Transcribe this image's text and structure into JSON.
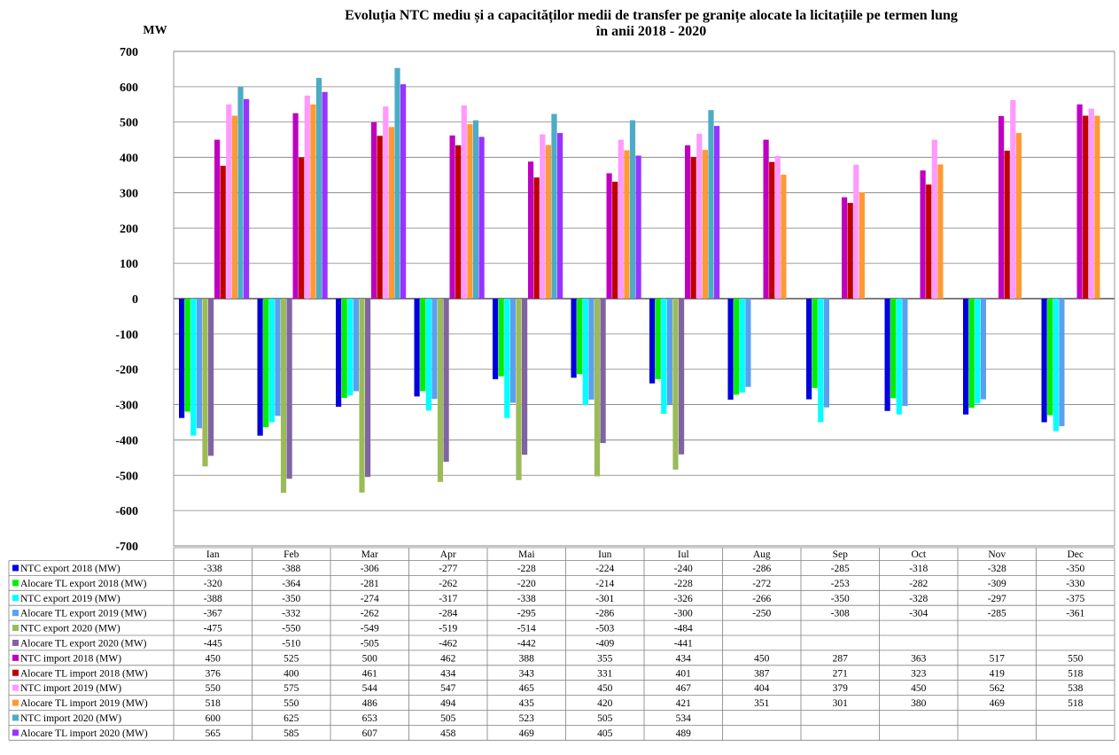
{
  "chart_data": {
    "type": "bar",
    "title": "Evoluția NTC mediu și  a capacităților medii de transfer pe granițe alocate la licitațiile pe termen lung",
    "subtitle": "în anii 2018 - 2020",
    "ylabel": "MW",
    "ylim": [
      -700,
      700
    ],
    "ytick_step": 100,
    "grid": true,
    "legend": "data-table",
    "categories": [
      "Ian",
      "Feb",
      "Mar",
      "Apr",
      "Mai",
      "Iun",
      "Iul",
      "Aug",
      "Sep",
      "Oct",
      "Nov",
      "Dec"
    ],
    "series": [
      {
        "name": "NTC export 2018 (MW)",
        "color": "#0000dd",
        "values": [
          -338,
          -388,
          -306,
          -277,
          -228,
          -224,
          -240,
          -286,
          -285,
          -318,
          -328,
          -350
        ]
      },
      {
        "name": "Alocare TL export 2018 (MW)",
        "color": "#00ee00",
        "values": [
          -320,
          -364,
          -281,
          -262,
          -220,
          -214,
          -228,
          -272,
          -253,
          -282,
          -309,
          -330
        ]
      },
      {
        "name": "NTC export 2019 (MW)",
        "color": "#00ffff",
        "values": [
          -388,
          -350,
          -274,
          -317,
          -338,
          -301,
          -326,
          -266,
          -350,
          -328,
          -297,
          -375
        ]
      },
      {
        "name": "Alocare TL export 2019 (MW)",
        "color": "#5aa0f0",
        "values": [
          -367,
          -332,
          -262,
          -284,
          -295,
          -286,
          -300,
          -250,
          -308,
          -304,
          -285,
          -361
        ]
      },
      {
        "name": "NTC export 2020 (MW)",
        "color": "#9bbb59",
        "values": [
          -475,
          -550,
          -549,
          -519,
          -514,
          -503,
          -484,
          null,
          null,
          null,
          null,
          null
        ]
      },
      {
        "name": "Alocare TL export 2020 (MW)",
        "color": "#8064a2",
        "values": [
          -445,
          -510,
          -505,
          -462,
          -442,
          -409,
          -441,
          null,
          null,
          null,
          null,
          null
        ]
      },
      {
        "name": "NTC import 2018 (MW)",
        "color": "#c000c0",
        "values": [
          450,
          525,
          500,
          462,
          388,
          355,
          434,
          450,
          287,
          363,
          517,
          550
        ]
      },
      {
        "name": "Alocare TL import 2018 (MW)",
        "color": "#c00000",
        "values": [
          376,
          400,
          461,
          434,
          343,
          331,
          401,
          387,
          271,
          323,
          419,
          518
        ]
      },
      {
        "name": "NTC import 2019 (MW)",
        "color": "#ff99ff",
        "values": [
          550,
          575,
          544,
          547,
          465,
          450,
          467,
          404,
          379,
          450,
          562,
          538
        ]
      },
      {
        "name": "Alocare TL import 2019 (MW)",
        "color": "#ff9933",
        "values": [
          518,
          550,
          486,
          494,
          435,
          420,
          421,
          351,
          301,
          380,
          469,
          518
        ]
      },
      {
        "name": "NTC import 2020 (MW)",
        "color": "#4bacc6",
        "values": [
          600,
          625,
          653,
          505,
          523,
          505,
          534,
          null,
          null,
          null,
          null,
          null
        ]
      },
      {
        "name": "Alocare TL import 2020 (MW)",
        "color": "#9933ff",
        "values": [
          565,
          585,
          607,
          458,
          469,
          405,
          489,
          null,
          null,
          null,
          null,
          null
        ]
      }
    ]
  }
}
